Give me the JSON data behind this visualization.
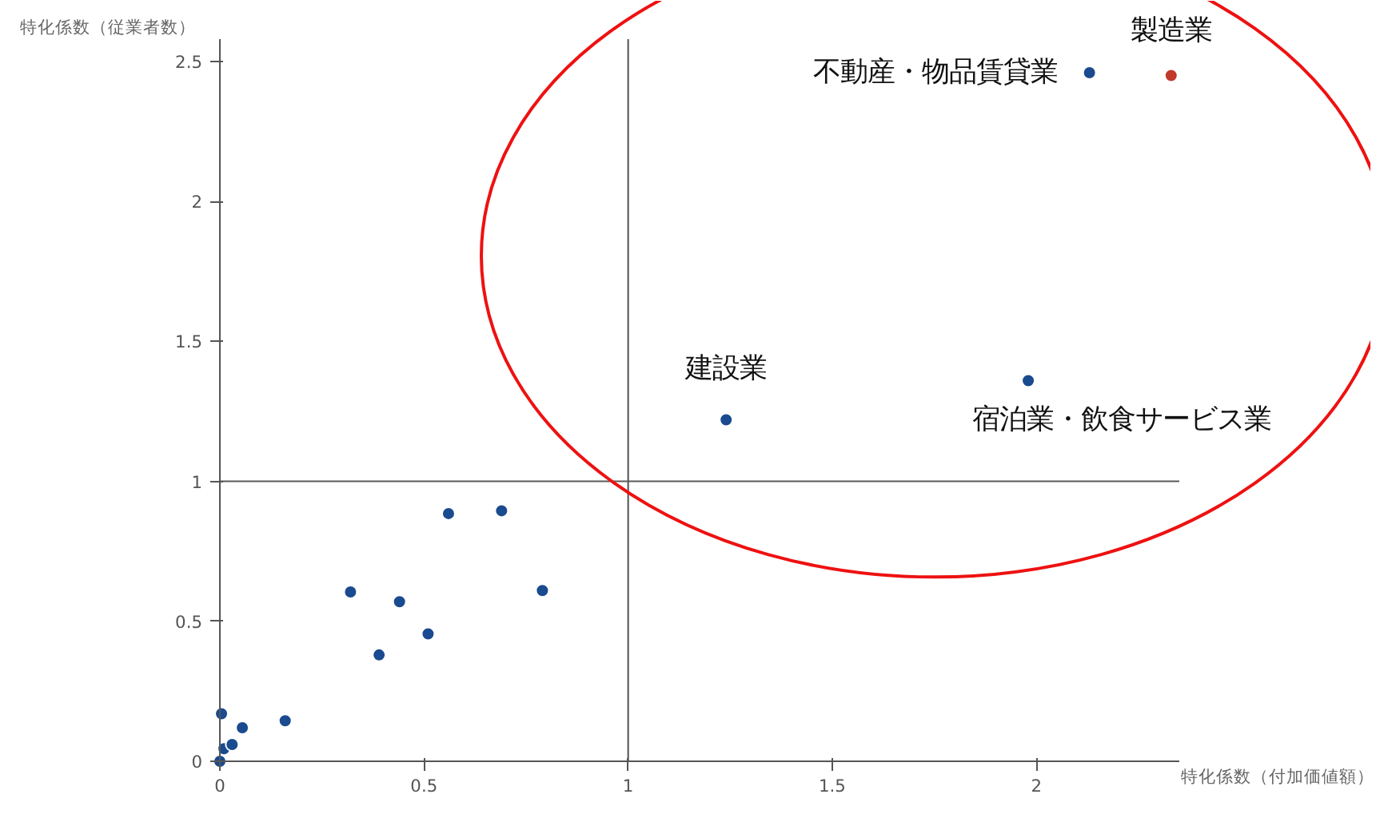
{
  "chart_data": {
    "type": "scatter",
    "xlabel": "特化係数（付加価値額）",
    "ylabel": "特化係数（従業者数）",
    "x": [
      0,
      0.004,
      0.01,
      0.03,
      0.055,
      0.16,
      0.32,
      0.39,
      0.44,
      0.51,
      0.56,
      0.69,
      0.79,
      1.24,
      1.98,
      2.13,
      2.33
    ],
    "values": [
      0,
      0.17,
      0.045,
      0.06,
      0.12,
      0.145,
      0.605,
      0.38,
      0.57,
      0.455,
      0.885,
      0.895,
      0.61,
      1.22,
      1.36,
      2.46,
      2.45
    ],
    "colors": [
      "#1a4a8f",
      "#1a4a8f",
      "#1a4a8f",
      "#1a4a8f",
      "#1a4a8f",
      "#1a4a8f",
      "#1a4a8f",
      "#1a4a8f",
      "#1a4a8f",
      "#1a4a8f",
      "#1a4a8f",
      "#1a4a8f",
      "#1a4a8f",
      "#1a4a8f",
      "#1a4a8f",
      "#1a4a8f",
      "#c0392b"
    ],
    "marker": "circle",
    "xlim": [
      0,
      2.35
    ],
    "ylim": [
      0,
      2.58
    ],
    "xticks": [
      0,
      0.5,
      1,
      1.5,
      2
    ],
    "yticks": [
      0,
      0.5,
      1,
      1.5,
      2,
      2.5
    ],
    "grid": false,
    "ref_lines": [
      {
        "axis": "x",
        "value": 1
      },
      {
        "axis": "y",
        "value": 1
      }
    ],
    "annotations": [
      {
        "text": "不動産・物品賃貸業",
        "x": 2.13,
        "y": 2.46
      },
      {
        "text": "製造業",
        "x": 2.33,
        "y": 2.45
      },
      {
        "text": "建設業",
        "x": 1.24,
        "y": 1.22
      },
      {
        "text": "宿泊業・飲食サービス業",
        "x": 1.98,
        "y": 1.36
      }
    ]
  }
}
